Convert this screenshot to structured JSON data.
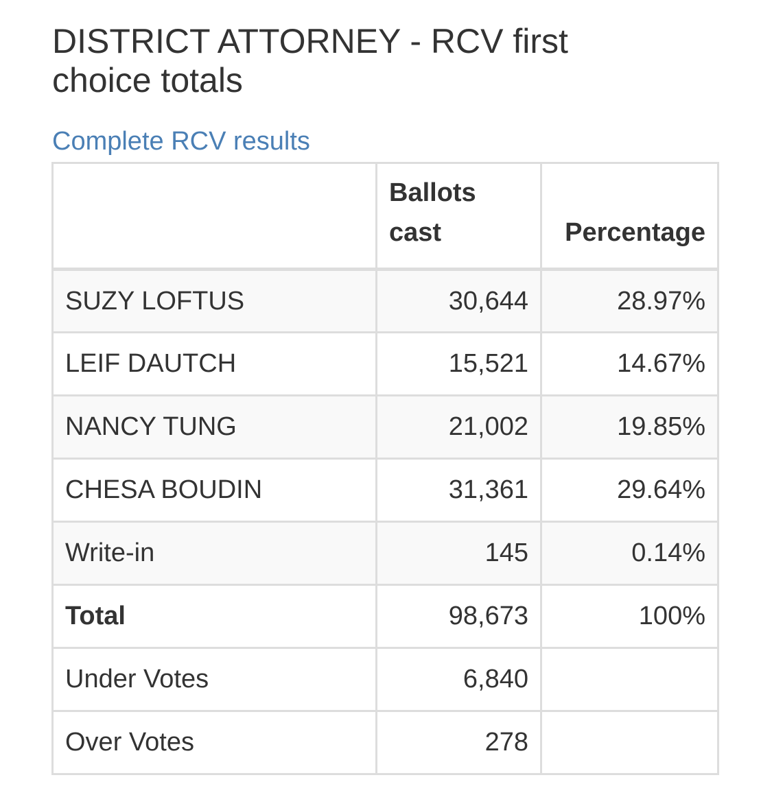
{
  "title": "DISTRICT ATTORNEY - RCV first choice totals",
  "rcv_link": "Complete RCV results",
  "table": {
    "headers": {
      "name": "",
      "ballots": "Ballots cast",
      "percentage": "Percentage"
    },
    "rows": [
      {
        "name": "SUZY LOFTUS",
        "ballots": "30,644",
        "percentage": "28.97%"
      },
      {
        "name": "LEIF DAUTCH",
        "ballots": "15,521",
        "percentage": "14.67%"
      },
      {
        "name": "NANCY TUNG",
        "ballots": "21,002",
        "percentage": "19.85%"
      },
      {
        "name": "CHESA BOUDIN",
        "ballots": "31,361",
        "percentage": "29.64%"
      },
      {
        "name": "Write-in",
        "ballots": "145",
        "percentage": "0.14%"
      },
      {
        "name": "Total",
        "ballots": "98,673",
        "percentage": "100%"
      },
      {
        "name": "Under Votes",
        "ballots": "6,840",
        "percentage": ""
      },
      {
        "name": "Over Votes",
        "ballots": "278",
        "percentage": ""
      }
    ]
  },
  "colors": {
    "link": "#4a7fb5",
    "text": "#333333",
    "border": "#dddddd",
    "stripe": "#f9f9f9"
  }
}
